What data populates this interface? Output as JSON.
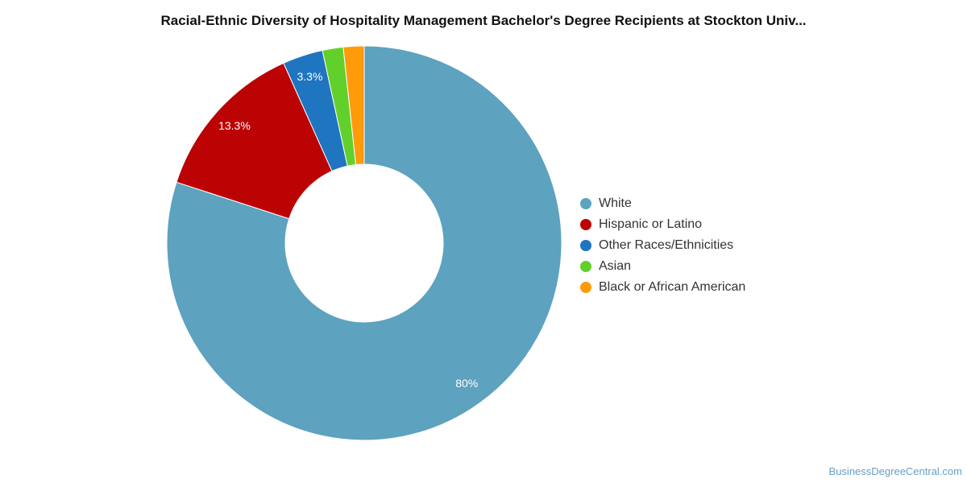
{
  "chart_data": {
    "type": "pie",
    "title": "Racial-Ethnic Diversity of Hospitality Management Bachelor's Degree Recipients at Stockton Univ...",
    "legend_position": "right",
    "slices": [
      {
        "name": "White",
        "value": 80,
        "label": "80%",
        "color": "#5da2bf"
      },
      {
        "name": "Hispanic or Latino",
        "value": 13.3,
        "label": "13.3%",
        "color": "#bb0303"
      },
      {
        "name": "Other Races/Ethnicities",
        "value": 3.3,
        "label": "3.3%",
        "color": "#1f75bf"
      },
      {
        "name": "Asian",
        "value": 1.7,
        "label": "",
        "color": "#62d02a"
      },
      {
        "name": "Black or African American",
        "value": 1.7,
        "label": "",
        "color": "#ff9a0a"
      }
    ]
  },
  "watermark": "BusinessDegreeCentral.com"
}
